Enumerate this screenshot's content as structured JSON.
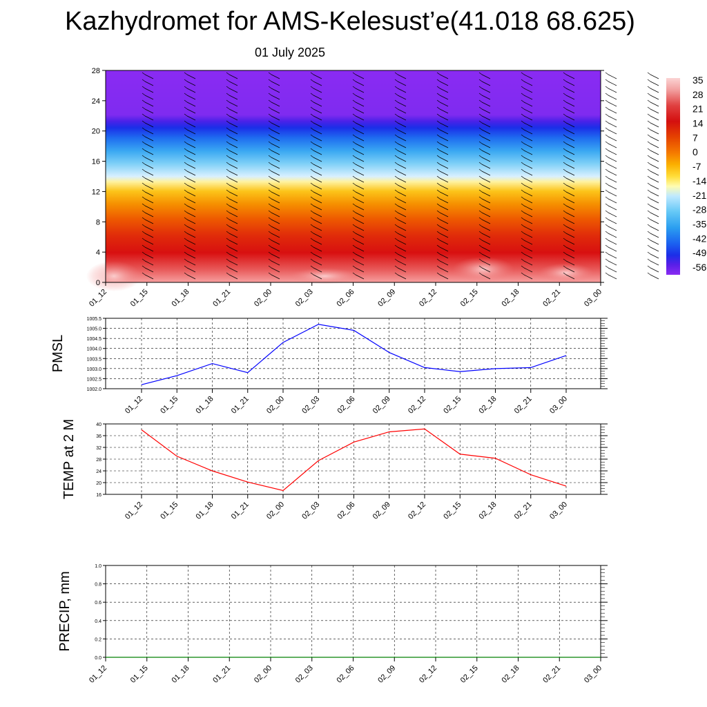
{
  "title": "Kazhydromet for AMS-Kelesust’e(41.018 68.625)",
  "subtitle": "01 July 2025",
  "time_ticks": [
    "01_12",
    "01_15",
    "01_18",
    "01_21",
    "02_00",
    "02_03",
    "02_06",
    "02_09",
    "02_12",
    "02_15",
    "02_18",
    "02_21",
    "03_00"
  ],
  "colorbar": {
    "labels": [
      "35",
      "28",
      "21",
      "14",
      "7",
      "0",
      "-7",
      "-14",
      "-21",
      "-28",
      "-35",
      "-42",
      "-49",
      "-56"
    ],
    "colors": [
      "#fbd3d3",
      "#f7a3a3",
      "#ee6a6a",
      "#e03232",
      "#d40f0f",
      "#e54200",
      "#f57a00",
      "#fbb000",
      "#ffde3a",
      "#fffcb0",
      "#bfe9ff",
      "#65c8f6",
      "#2b9ff0",
      "#1b62f0",
      "#1b2ee8",
      "#5a1fe8",
      "#8a2bf2"
    ]
  },
  "chart_data": [
    {
      "type": "heatmap",
      "y": [
        0,
        4,
        8,
        12,
        16,
        20,
        24,
        28
      ],
      "ylim": [
        0,
        28
      ],
      "categories": [
        "01_12",
        "01_15",
        "01_18",
        "01_21",
        "02_00",
        "02_03",
        "02_06",
        "02_09",
        "02_12",
        "02_15",
        "02_18",
        "02_21",
        "03_00"
      ],
      "colorbar_range": [
        -56,
        35
      ]
    },
    {
      "type": "line",
      "ylabel": "PMSL",
      "categories": [
        "01_12",
        "01_15",
        "01_18",
        "01_21",
        "02_00",
        "02_03",
        "02_06",
        "02_09",
        "02_12",
        "02_15",
        "02_18",
        "02_21",
        "03_00"
      ],
      "values": [
        1002.2,
        1002.65,
        1003.25,
        1002.8,
        1004.3,
        1005.2,
        1004.9,
        1003.8,
        1003.05,
        1002.85,
        1003.0,
        1003.05,
        1003.65
      ],
      "ylim": [
        1002.0,
        1005.5
      ],
      "yticks": [
        "1002.0",
        "1002.5",
        "1003.0",
        "1003.5",
        "1004.0",
        "1004.5",
        "1005.0",
        "1005.5"
      ],
      "color": "#0000ff"
    },
    {
      "type": "line",
      "ylabel": "TEMP at 2 M",
      "categories": [
        "01_12",
        "01_15",
        "01_18",
        "01_21",
        "02_00",
        "02_03",
        "02_06",
        "02_09",
        "02_12",
        "02_15",
        "02_18",
        "02_21",
        "03_00"
      ],
      "values": [
        38.0,
        29.0,
        24.0,
        20.2,
        17.3,
        27.5,
        33.8,
        37.3,
        38.3,
        29.7,
        28.3,
        22.7,
        18.8
      ],
      "ylim": [
        16,
        40
      ],
      "yticks": [
        "16",
        "20",
        "24",
        "28",
        "32",
        "36",
        "40"
      ],
      "color": "#ff0000"
    },
    {
      "type": "line",
      "ylabel": "PRECIP, mm",
      "categories": [
        "01_12",
        "01_15",
        "01_18",
        "01_21",
        "02_00",
        "02_03",
        "02_06",
        "02_09",
        "02_12",
        "02_15",
        "02_18",
        "02_21",
        "03_00"
      ],
      "values": [
        0,
        0,
        0,
        0,
        0,
        0,
        0,
        0,
        0,
        0,
        0,
        0,
        0
      ],
      "ylim": [
        0,
        1.0
      ],
      "yticks": [
        "0.0",
        "0.2",
        "0.4",
        "0.6",
        "0.8",
        "1.0"
      ],
      "color": "#008000"
    }
  ]
}
